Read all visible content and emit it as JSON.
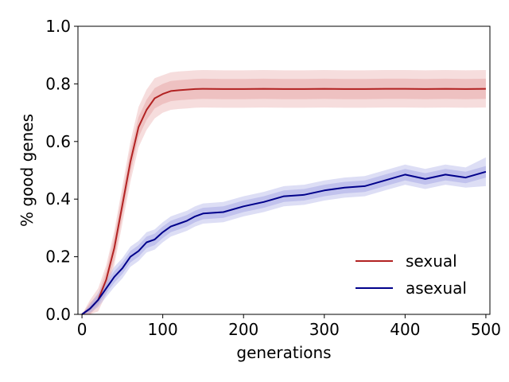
{
  "chart_data": {
    "type": "line",
    "title": "",
    "xlabel": "generations",
    "ylabel": "% good genes",
    "xlim": [
      -5,
      505
    ],
    "ylim": [
      0,
      1.0
    ],
    "xticks": [
      0,
      100,
      200,
      300,
      400,
      500
    ],
    "xtick_labels": [
      "0",
      "100",
      "200",
      "300",
      "400",
      "500"
    ],
    "yticks": [
      0.0,
      0.2,
      0.4,
      0.6,
      0.8,
      1.0
    ],
    "ytick_labels": [
      "0.0",
      "0.2",
      "0.4",
      "0.6",
      "0.8",
      "1.0"
    ],
    "grid": false,
    "legend": {
      "position": "lower-right"
    },
    "series": [
      {
        "name": "sexual",
        "color": "#b22222",
        "band_color": "#e8a9a9",
        "x": [
          0,
          10,
          20,
          30,
          40,
          50,
          60,
          70,
          80,
          90,
          100,
          110,
          120,
          130,
          140,
          150,
          175,
          200,
          225,
          250,
          275,
          300,
          325,
          350,
          375,
          400,
          425,
          450,
          475,
          500
        ],
        "y": [
          0.0,
          0.02,
          0.05,
          0.12,
          0.23,
          0.38,
          0.53,
          0.65,
          0.71,
          0.75,
          0.765,
          0.775,
          0.778,
          0.78,
          0.782,
          0.783,
          0.782,
          0.782,
          0.783,
          0.782,
          0.782,
          0.783,
          0.782,
          0.782,
          0.783,
          0.783,
          0.782,
          0.783,
          0.782,
          0.783
        ],
        "inner_band": [
          0.0,
          0.02,
          0.02,
          0.03,
          0.04,
          0.04,
          0.04,
          0.035,
          0.035,
          0.035,
          0.035,
          0.035,
          0.035,
          0.035,
          0.035,
          0.035,
          0.035,
          0.035,
          0.035,
          0.035,
          0.035,
          0.035,
          0.035,
          0.035,
          0.035,
          0.035,
          0.035,
          0.035,
          0.035,
          0.035
        ],
        "outer_band": [
          0.0,
          0.03,
          0.04,
          0.05,
          0.06,
          0.065,
          0.07,
          0.07,
          0.07,
          0.07,
          0.065,
          0.065,
          0.065,
          0.065,
          0.065,
          0.065,
          0.065,
          0.065,
          0.065,
          0.065,
          0.065,
          0.065,
          0.065,
          0.065,
          0.065,
          0.065,
          0.065,
          0.065,
          0.065,
          0.065
        ]
      },
      {
        "name": "asexual",
        "color": "#00008b",
        "band_color": "#a9ace6",
        "x": [
          0,
          10,
          20,
          30,
          40,
          50,
          60,
          70,
          80,
          90,
          100,
          110,
          120,
          130,
          140,
          150,
          175,
          200,
          225,
          250,
          275,
          300,
          325,
          350,
          375,
          400,
          425,
          450,
          475,
          500
        ],
        "y": [
          0.0,
          0.02,
          0.05,
          0.09,
          0.13,
          0.16,
          0.2,
          0.22,
          0.25,
          0.26,
          0.285,
          0.305,
          0.315,
          0.325,
          0.34,
          0.35,
          0.355,
          0.375,
          0.39,
          0.41,
          0.415,
          0.43,
          0.44,
          0.445,
          0.465,
          0.485,
          0.47,
          0.485,
          0.475,
          0.495
        ],
        "inner_band": [
          0.0,
          0.01,
          0.015,
          0.018,
          0.02,
          0.02,
          0.02,
          0.02,
          0.02,
          0.02,
          0.02,
          0.02,
          0.02,
          0.02,
          0.02,
          0.02,
          0.02,
          0.02,
          0.02,
          0.02,
          0.02,
          0.02,
          0.02,
          0.02,
          0.02,
          0.02,
          0.02,
          0.02,
          0.02,
          0.02
        ],
        "outer_band": [
          0.0,
          0.015,
          0.025,
          0.03,
          0.035,
          0.035,
          0.035,
          0.035,
          0.035,
          0.035,
          0.035,
          0.035,
          0.035,
          0.035,
          0.035,
          0.035,
          0.035,
          0.035,
          0.035,
          0.035,
          0.035,
          0.035,
          0.035,
          0.035,
          0.035,
          0.035,
          0.035,
          0.035,
          0.035,
          0.05
        ]
      }
    ]
  }
}
